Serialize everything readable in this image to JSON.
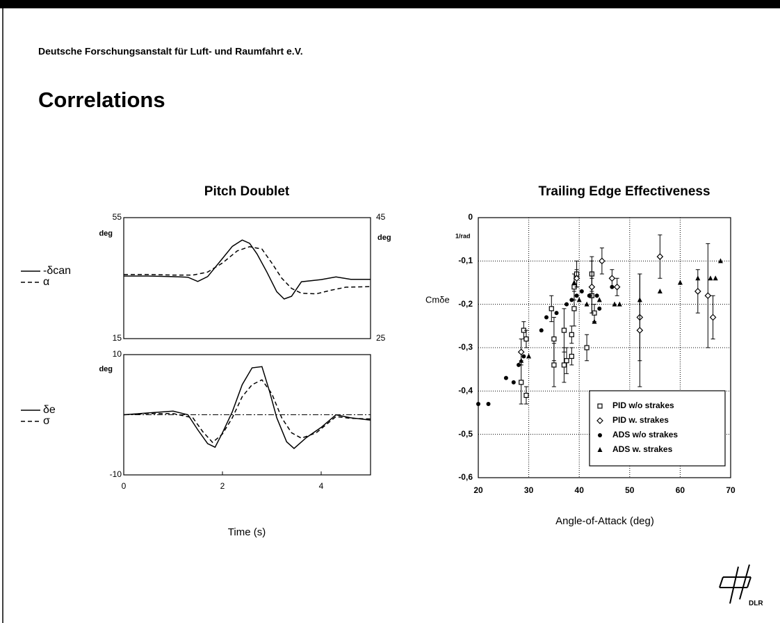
{
  "header": {
    "organization": "Deutsche Forschungsanstalt für Luft- und Raumfahrt e.V.",
    "title": "Correlations"
  },
  "logo": {
    "text": "DLR"
  },
  "chart_data": [
    {
      "type": "line",
      "title": "Pitch Doublet",
      "xlim": [
        0,
        5
      ],
      "ylim": [
        15,
        55
      ],
      "yticks": [
        15,
        55
      ],
      "ylabel": "deg",
      "y2lim": [
        25,
        45
      ],
      "y2ticks": [
        25,
        45
      ],
      "y2label": "deg",
      "series": [
        {
          "name": "-δcan",
          "color": "#000",
          "dash": "solid",
          "x": [
            0,
            0.5,
            1,
            1.3,
            1.5,
            1.7,
            2,
            2.2,
            2.4,
            2.55,
            2.7,
            2.9,
            3.1,
            3.25,
            3.4,
            3.6,
            4,
            4.3,
            4.6,
            5
          ],
          "values": [
            35.7,
            35.7,
            35.5,
            35.3,
            33.9,
            35.5,
            41.5,
            45.5,
            47.6,
            46.5,
            43,
            37,
            30.5,
            28.1,
            29,
            33.8,
            34.5,
            35.4,
            34.6,
            34.6
          ]
        },
        {
          "name": "α",
          "color": "#000",
          "dash": "dashed",
          "axis": "y2",
          "x": [
            0,
            0.5,
            1,
            1.4,
            1.7,
            2,
            2.3,
            2.55,
            2.8,
            3,
            3.2,
            3.4,
            3.6,
            3.9,
            4.2,
            4.5,
            5
          ],
          "values": [
            35.6,
            35.6,
            35.5,
            35.5,
            36,
            37.5,
            39.5,
            40.2,
            39.8,
            37.5,
            35,
            33.3,
            32.5,
            32.4,
            33,
            33.5,
            33.6
          ]
        }
      ]
    },
    {
      "type": "line",
      "xlabel": "Time (s)",
      "xlim": [
        0,
        5
      ],
      "xticks": [
        0,
        2,
        4
      ],
      "ylim": [
        -10,
        10
      ],
      "yticks": [
        -10,
        10
      ],
      "ylabel": "deg",
      "series": [
        {
          "name": "δe",
          "color": "#000",
          "dash": "solid",
          "x": [
            0,
            0.5,
            1,
            1.3,
            1.5,
            1.7,
            1.85,
            2,
            2.2,
            2.4,
            2.6,
            2.8,
            2.95,
            3.1,
            3.3,
            3.45,
            3.7,
            4,
            4.3,
            4.6,
            5
          ],
          "values": [
            0,
            0.3,
            0.6,
            0,
            -2.5,
            -4.8,
            -5.4,
            -3,
            0.5,
            5,
            7.8,
            8,
            4,
            -0.5,
            -4.5,
            -5.6,
            -3.8,
            -2.1,
            0,
            -0.5,
            -0.9
          ]
        },
        {
          "name": "σ",
          "color": "#000",
          "dash": "dashed",
          "x": [
            0,
            0.5,
            1,
            1.4,
            1.6,
            1.8,
            2,
            2.2,
            2.4,
            2.6,
            2.8,
            3,
            3.2,
            3.4,
            3.6,
            3.9,
            4.3,
            4.6,
            5
          ],
          "values": [
            0,
            0.2,
            0.2,
            -0.5,
            -2.8,
            -4.6,
            -3.2,
            -0.5,
            3,
            5,
            5.8,
            3.5,
            -0.5,
            -3,
            -3.9,
            -3,
            -0.3,
            -0.6,
            -0.7
          ]
        }
      ]
    },
    {
      "type": "scatter",
      "title": "Trailing Edge Effectiveness",
      "xlabel": "Angle-of-Attack (deg)",
      "ylabel": "Cmδe",
      "yunit": "1/rad",
      "xlim": [
        20,
        70
      ],
      "xticks": [
        20,
        30,
        40,
        50,
        60,
        70
      ],
      "ylim": [
        -0.6,
        0
      ],
      "yticks": [
        0,
        {
          "value": -0.1,
          "label": "-0,1"
        },
        {
          "value": -0.2,
          "label": "-0,2"
        },
        {
          "value": -0.3,
          "label": "-0,3"
        },
        {
          "value": -0.4,
          "label": "-0,4"
        },
        {
          "value": -0.5,
          "label": "-0,5"
        },
        {
          "value": -0.6,
          "label": "-0,6"
        }
      ],
      "grid": true,
      "legend": "lower right",
      "series": [
        {
          "name": "PID w/o strakes",
          "marker": "square",
          "color": "#000",
          "x": [
            28.5,
            29,
            29.5,
            29.5,
            34.5,
            35,
            35,
            37,
            37,
            37.5,
            38.5,
            38.5,
            39,
            39,
            39.5,
            41.5,
            42.5,
            42.5,
            43
          ],
          "values": [
            -0.38,
            -0.26,
            -0.28,
            -0.41,
            -0.21,
            -0.34,
            -0.28,
            -0.26,
            -0.34,
            -0.33,
            -0.32,
            -0.27,
            -0.21,
            -0.16,
            -0.13,
            -0.3,
            -0.18,
            -0.13,
            -0.22
          ],
          "errors": [
            0.05,
            0.02,
            0.02,
            0.02,
            0.03,
            0.05,
            0.05,
            0.05,
            0.04,
            0.03,
            0.02,
            0.02,
            0.04,
            0.03,
            0.03,
            0.03,
            0.04,
            0.04,
            0.02
          ]
        },
        {
          "name": "PID w. strakes",
          "marker": "diamond",
          "color": "#000",
          "x": [
            28.5,
            39.5,
            42.5,
            44.5,
            46.5,
            47.5,
            52,
            52,
            56,
            63.5,
            65.5,
            66.5
          ],
          "values": [
            -0.31,
            -0.14,
            -0.16,
            -0.1,
            -0.14,
            -0.16,
            -0.23,
            -0.26,
            -0.09,
            -0.17,
            -0.18,
            -0.23
          ],
          "errors": [
            0.03,
            0.02,
            0.06,
            0.03,
            0.02,
            0.02,
            0.1,
            0.13,
            0.05,
            0.05,
            0.12,
            0.05
          ]
        },
        {
          "name": "ADS w/o strakes",
          "marker": "circle",
          "color": "#000",
          "x": [
            20,
            22,
            25.5,
            27,
            28,
            29,
            32.5,
            33.5,
            35.5,
            37.5,
            38.5,
            39.5,
            40.5,
            42,
            43.5,
            44,
            46.5
          ],
          "values": [
            -0.43,
            -0.43,
            -0.37,
            -0.38,
            -0.34,
            -0.32,
            -0.26,
            -0.23,
            -0.22,
            -0.2,
            -0.19,
            -0.18,
            -0.17,
            -0.18,
            -0.18,
            -0.21,
            -0.16
          ]
        },
        {
          "name": "ADS w. strakes",
          "marker": "triangle",
          "color": "#000",
          "x": [
            28.5,
            30,
            39,
            40,
            41.5,
            43,
            44,
            47,
            48,
            52,
            56,
            60,
            63.5,
            66,
            67,
            68
          ],
          "values": [
            -0.33,
            -0.32,
            -0.15,
            -0.19,
            -0.2,
            -0.24,
            -0.19,
            -0.2,
            -0.2,
            -0.19,
            -0.17,
            -0.15,
            -0.14,
            -0.14,
            -0.14,
            -0.1
          ]
        }
      ]
    }
  ]
}
